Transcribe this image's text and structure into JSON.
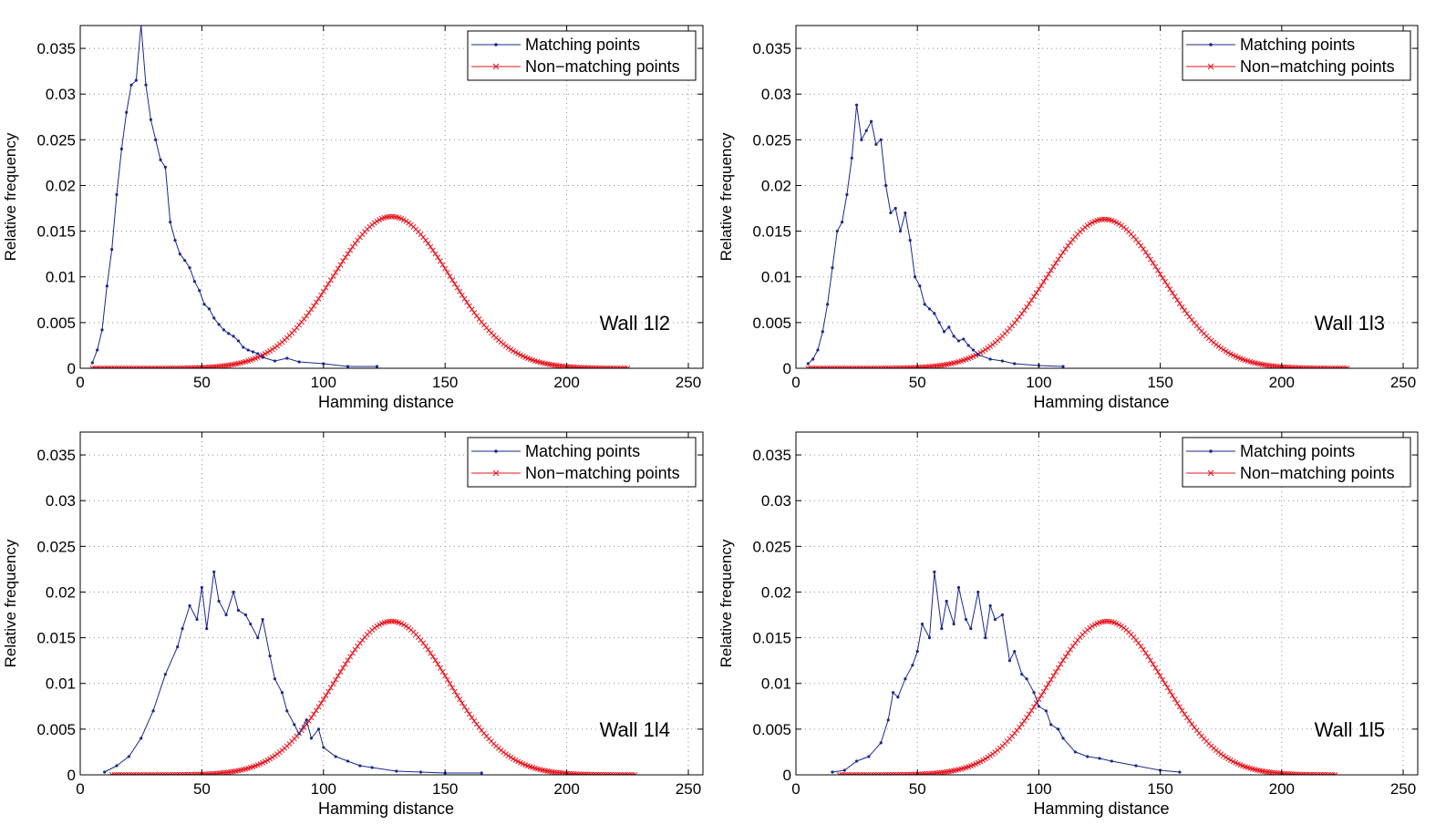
{
  "colors": {
    "matching": "#1a2a8c",
    "non_matching": "#e8141e",
    "grid": "#8c8c8c",
    "axis": "#000000"
  },
  "icons": {
    "matching_marker": "dot-marker",
    "non_matching_marker": "x-marker"
  },
  "chart_data": [
    {
      "type": "line",
      "annotation": "Wall 1l2",
      "xlabel": "Hamming distance",
      "ylabel": "Relative frequency",
      "xlim": [
        0,
        256
      ],
      "ylim": [
        0,
        0.0375
      ],
      "xticks": [
        0,
        50,
        100,
        150,
        200,
        250
      ],
      "yticks": [
        0,
        0.005,
        0.01,
        0.015,
        0.02,
        0.025,
        0.03,
        0.035
      ],
      "ytick_labels": [
        "0",
        "0.005",
        "0.01",
        "0.015",
        "0.02",
        "0.025",
        "0.03",
        "0.035"
      ],
      "grid": true,
      "legend_position": "top-right",
      "series": [
        {
          "name": "Matching points",
          "marker": "dot",
          "x": [
            5,
            7,
            9,
            11,
            13,
            15,
            17,
            19,
            21,
            23,
            25,
            27,
            29,
            31,
            33,
            35,
            37,
            39,
            41,
            43,
            45,
            47,
            49,
            51,
            53,
            55,
            57,
            59,
            61,
            63,
            65,
            67,
            69,
            71,
            73,
            75,
            80,
            85,
            90,
            100,
            110,
            122
          ],
          "y": [
            0.0006,
            0.002,
            0.0042,
            0.009,
            0.013,
            0.019,
            0.024,
            0.028,
            0.031,
            0.0315,
            0.0376,
            0.031,
            0.0272,
            0.025,
            0.0228,
            0.022,
            0.016,
            0.014,
            0.0125,
            0.0118,
            0.011,
            0.0095,
            0.0085,
            0.007,
            0.0065,
            0.0055,
            0.0048,
            0.0042,
            0.0038,
            0.0035,
            0.003,
            0.0023,
            0.002,
            0.0018,
            0.0016,
            0.0012,
            0.0008,
            0.0011,
            0.0007,
            0.0005,
            0.0002,
            0.0002
          ]
        },
        {
          "name": "Non−matching points",
          "marker": "x",
          "x_range": [
            5,
            225
          ],
          "gaussian": {
            "mean": 128,
            "sigma": 24,
            "peak": 0.0166
          }
        }
      ]
    },
    {
      "type": "line",
      "annotation": "Wall 1l3",
      "xlabel": "Hamming distance",
      "ylabel": "Relative frequency",
      "xlim": [
        0,
        256
      ],
      "ylim": [
        0,
        0.0375
      ],
      "xticks": [
        0,
        50,
        100,
        150,
        200,
        250
      ],
      "yticks": [
        0,
        0.005,
        0.01,
        0.015,
        0.02,
        0.025,
        0.03,
        0.035
      ],
      "ytick_labels": [
        "0",
        "0.005",
        "0.01",
        "0.015",
        "0.02",
        "0.025",
        "0.03",
        "0.035"
      ],
      "grid": true,
      "legend_position": "top-right",
      "series": [
        {
          "name": "Matching points",
          "marker": "dot",
          "x": [
            5,
            7,
            9,
            11,
            13,
            15,
            17,
            19,
            21,
            23,
            25,
            27,
            29,
            31,
            33,
            35,
            37,
            39,
            41,
            43,
            45,
            47,
            49,
            51,
            53,
            55,
            57,
            59,
            61,
            63,
            65,
            67,
            69,
            71,
            73,
            75,
            80,
            85,
            90,
            100,
            110
          ],
          "y": [
            0.0005,
            0.001,
            0.002,
            0.004,
            0.007,
            0.011,
            0.015,
            0.016,
            0.019,
            0.023,
            0.0288,
            0.025,
            0.026,
            0.027,
            0.0245,
            0.025,
            0.02,
            0.017,
            0.0175,
            0.015,
            0.017,
            0.014,
            0.01,
            0.009,
            0.007,
            0.0065,
            0.006,
            0.005,
            0.004,
            0.0045,
            0.0035,
            0.003,
            0.0032,
            0.0025,
            0.002,
            0.0015,
            0.001,
            0.0008,
            0.0005,
            0.0003,
            0.0002
          ]
        },
        {
          "name": "Non−matching points",
          "marker": "x",
          "x_range": [
            5,
            227
          ],
          "gaussian": {
            "mean": 127,
            "sigma": 24,
            "peak": 0.0163
          }
        }
      ]
    },
    {
      "type": "line",
      "annotation": "Wall 1l4",
      "xlabel": "Hamming distance",
      "ylabel": "Relative frequency",
      "xlim": [
        0,
        256
      ],
      "ylim": [
        0,
        0.0375
      ],
      "xticks": [
        0,
        50,
        100,
        150,
        200,
        250
      ],
      "yticks": [
        0,
        0.005,
        0.01,
        0.015,
        0.02,
        0.025,
        0.03,
        0.035
      ],
      "ytick_labels": [
        "0",
        "0.005",
        "0.01",
        "0.015",
        "0.02",
        "0.025",
        "0.03",
        "0.035"
      ],
      "grid": true,
      "legend_position": "top-right",
      "series": [
        {
          "name": "Matching points",
          "marker": "dot",
          "x": [
            10,
            15,
            20,
            25,
            30,
            35,
            40,
            42,
            45,
            48,
            50,
            52,
            55,
            57,
            60,
            63,
            65,
            68,
            70,
            73,
            75,
            78,
            80,
            83,
            85,
            88,
            90,
            93,
            95,
            98,
            100,
            105,
            110,
            115,
            120,
            130,
            140,
            150,
            165
          ],
          "y": [
            0.0003,
            0.001,
            0.002,
            0.004,
            0.007,
            0.011,
            0.014,
            0.016,
            0.0185,
            0.017,
            0.0205,
            0.016,
            0.0222,
            0.019,
            0.0175,
            0.02,
            0.018,
            0.0175,
            0.0165,
            0.015,
            0.017,
            0.013,
            0.0105,
            0.009,
            0.007,
            0.0055,
            0.0045,
            0.006,
            0.004,
            0.005,
            0.003,
            0.002,
            0.0015,
            0.001,
            0.0008,
            0.0004,
            0.0003,
            0.0002,
            0.0002
          ]
        },
        {
          "name": "Non−matching points",
          "marker": "x",
          "x_range": [
            13,
            228
          ],
          "gaussian": {
            "mean": 128,
            "sigma": 23.5,
            "peak": 0.0168
          }
        }
      ]
    },
    {
      "type": "line",
      "annotation": "Wall 1l5",
      "xlabel": "Hamming distance",
      "ylabel": "Relative frequency",
      "xlim": [
        0,
        256
      ],
      "ylim": [
        0,
        0.0375
      ],
      "xticks": [
        0,
        50,
        100,
        150,
        200,
        250
      ],
      "yticks": [
        0,
        0.005,
        0.01,
        0.015,
        0.02,
        0.025,
        0.03,
        0.035
      ],
      "ytick_labels": [
        "0",
        "0.005",
        "0.01",
        "0.015",
        "0.02",
        "0.025",
        "0.03",
        "0.035"
      ],
      "grid": true,
      "legend_position": "top-right",
      "series": [
        {
          "name": "Matching points",
          "marker": "dot",
          "x": [
            15,
            20,
            25,
            30,
            35,
            38,
            40,
            42,
            45,
            48,
            50,
            52,
            55,
            57,
            60,
            62,
            65,
            67,
            70,
            72,
            75,
            78,
            80,
            82,
            85,
            88,
            90,
            93,
            95,
            98,
            100,
            103,
            105,
            108,
            110,
            115,
            120,
            125,
            130,
            140,
            150,
            158
          ],
          "y": [
            0.0003,
            0.0005,
            0.0015,
            0.002,
            0.0035,
            0.006,
            0.009,
            0.0085,
            0.0105,
            0.012,
            0.0135,
            0.0165,
            0.015,
            0.0222,
            0.016,
            0.019,
            0.0165,
            0.0205,
            0.017,
            0.016,
            0.02,
            0.015,
            0.0185,
            0.017,
            0.0175,
            0.0125,
            0.0135,
            0.011,
            0.0105,
            0.009,
            0.0075,
            0.007,
            0.0055,
            0.005,
            0.004,
            0.0025,
            0.002,
            0.0018,
            0.0015,
            0.001,
            0.0005,
            0.0003
          ]
        },
        {
          "name": "Non−matching points",
          "marker": "x",
          "x_range": [
            18,
            222
          ],
          "gaussian": {
            "mean": 128,
            "sigma": 23.5,
            "peak": 0.0168
          }
        }
      ]
    }
  ]
}
